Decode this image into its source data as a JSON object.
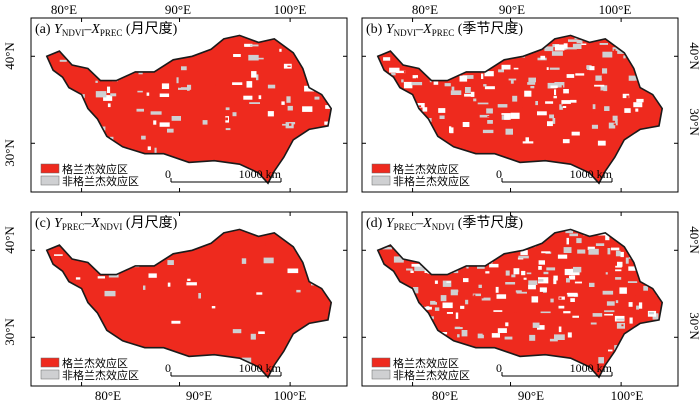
{
  "axis_labels": {
    "top": [
      "80°E",
      "90°E",
      "100°E",
      "80°E",
      "90°E",
      "100°E"
    ],
    "bottom": [
      "80°E",
      "90°E",
      "100°E",
      "80°E",
      "90°E",
      "100°E"
    ],
    "left": [
      "40°N",
      "30°N",
      "40°N",
      "30°N"
    ],
    "right": [
      "40°N",
      "30°N",
      "40°N",
      "30°N"
    ]
  },
  "panels": [
    {
      "id": "a",
      "prefix": "(a)",
      "y": "Y",
      "ysub": "NDVI",
      "dash": "–",
      "x": "X",
      "xsub": "PREC",
      "scale": "(月尺度)",
      "red_ratio": 0.82
    },
    {
      "id": "b",
      "prefix": "(b)",
      "y": "Y",
      "ysub": "NDVI",
      "dash": "–",
      "x": "X",
      "xsub": "PREC",
      "scale": "(季节尺度)",
      "red_ratio": 0.62
    },
    {
      "id": "c",
      "prefix": "(c)",
      "y": "Y",
      "ysub": "PREC",
      "dash": "–",
      "x": "X",
      "xsub": "NDVI",
      "scale": "(月尺度)",
      "red_ratio": 0.92
    },
    {
      "id": "d",
      "prefix": "(d)",
      "y": "Y",
      "ysub": "PREC",
      "dash": "–",
      "x": "X",
      "xsub": "NDVI",
      "scale": "(季节尺度)",
      "red_ratio": 0.52
    }
  ],
  "legend": {
    "causal": "格兰杰效应区",
    "noncausal": "非格兰杰效应区"
  },
  "scalebar": {
    "zero": "0",
    "distance": "1000 km"
  },
  "colors": {
    "causal": "#ee2a1e",
    "noncausal": "#cfd0d2",
    "outline": "#1a1a1a"
  }
}
